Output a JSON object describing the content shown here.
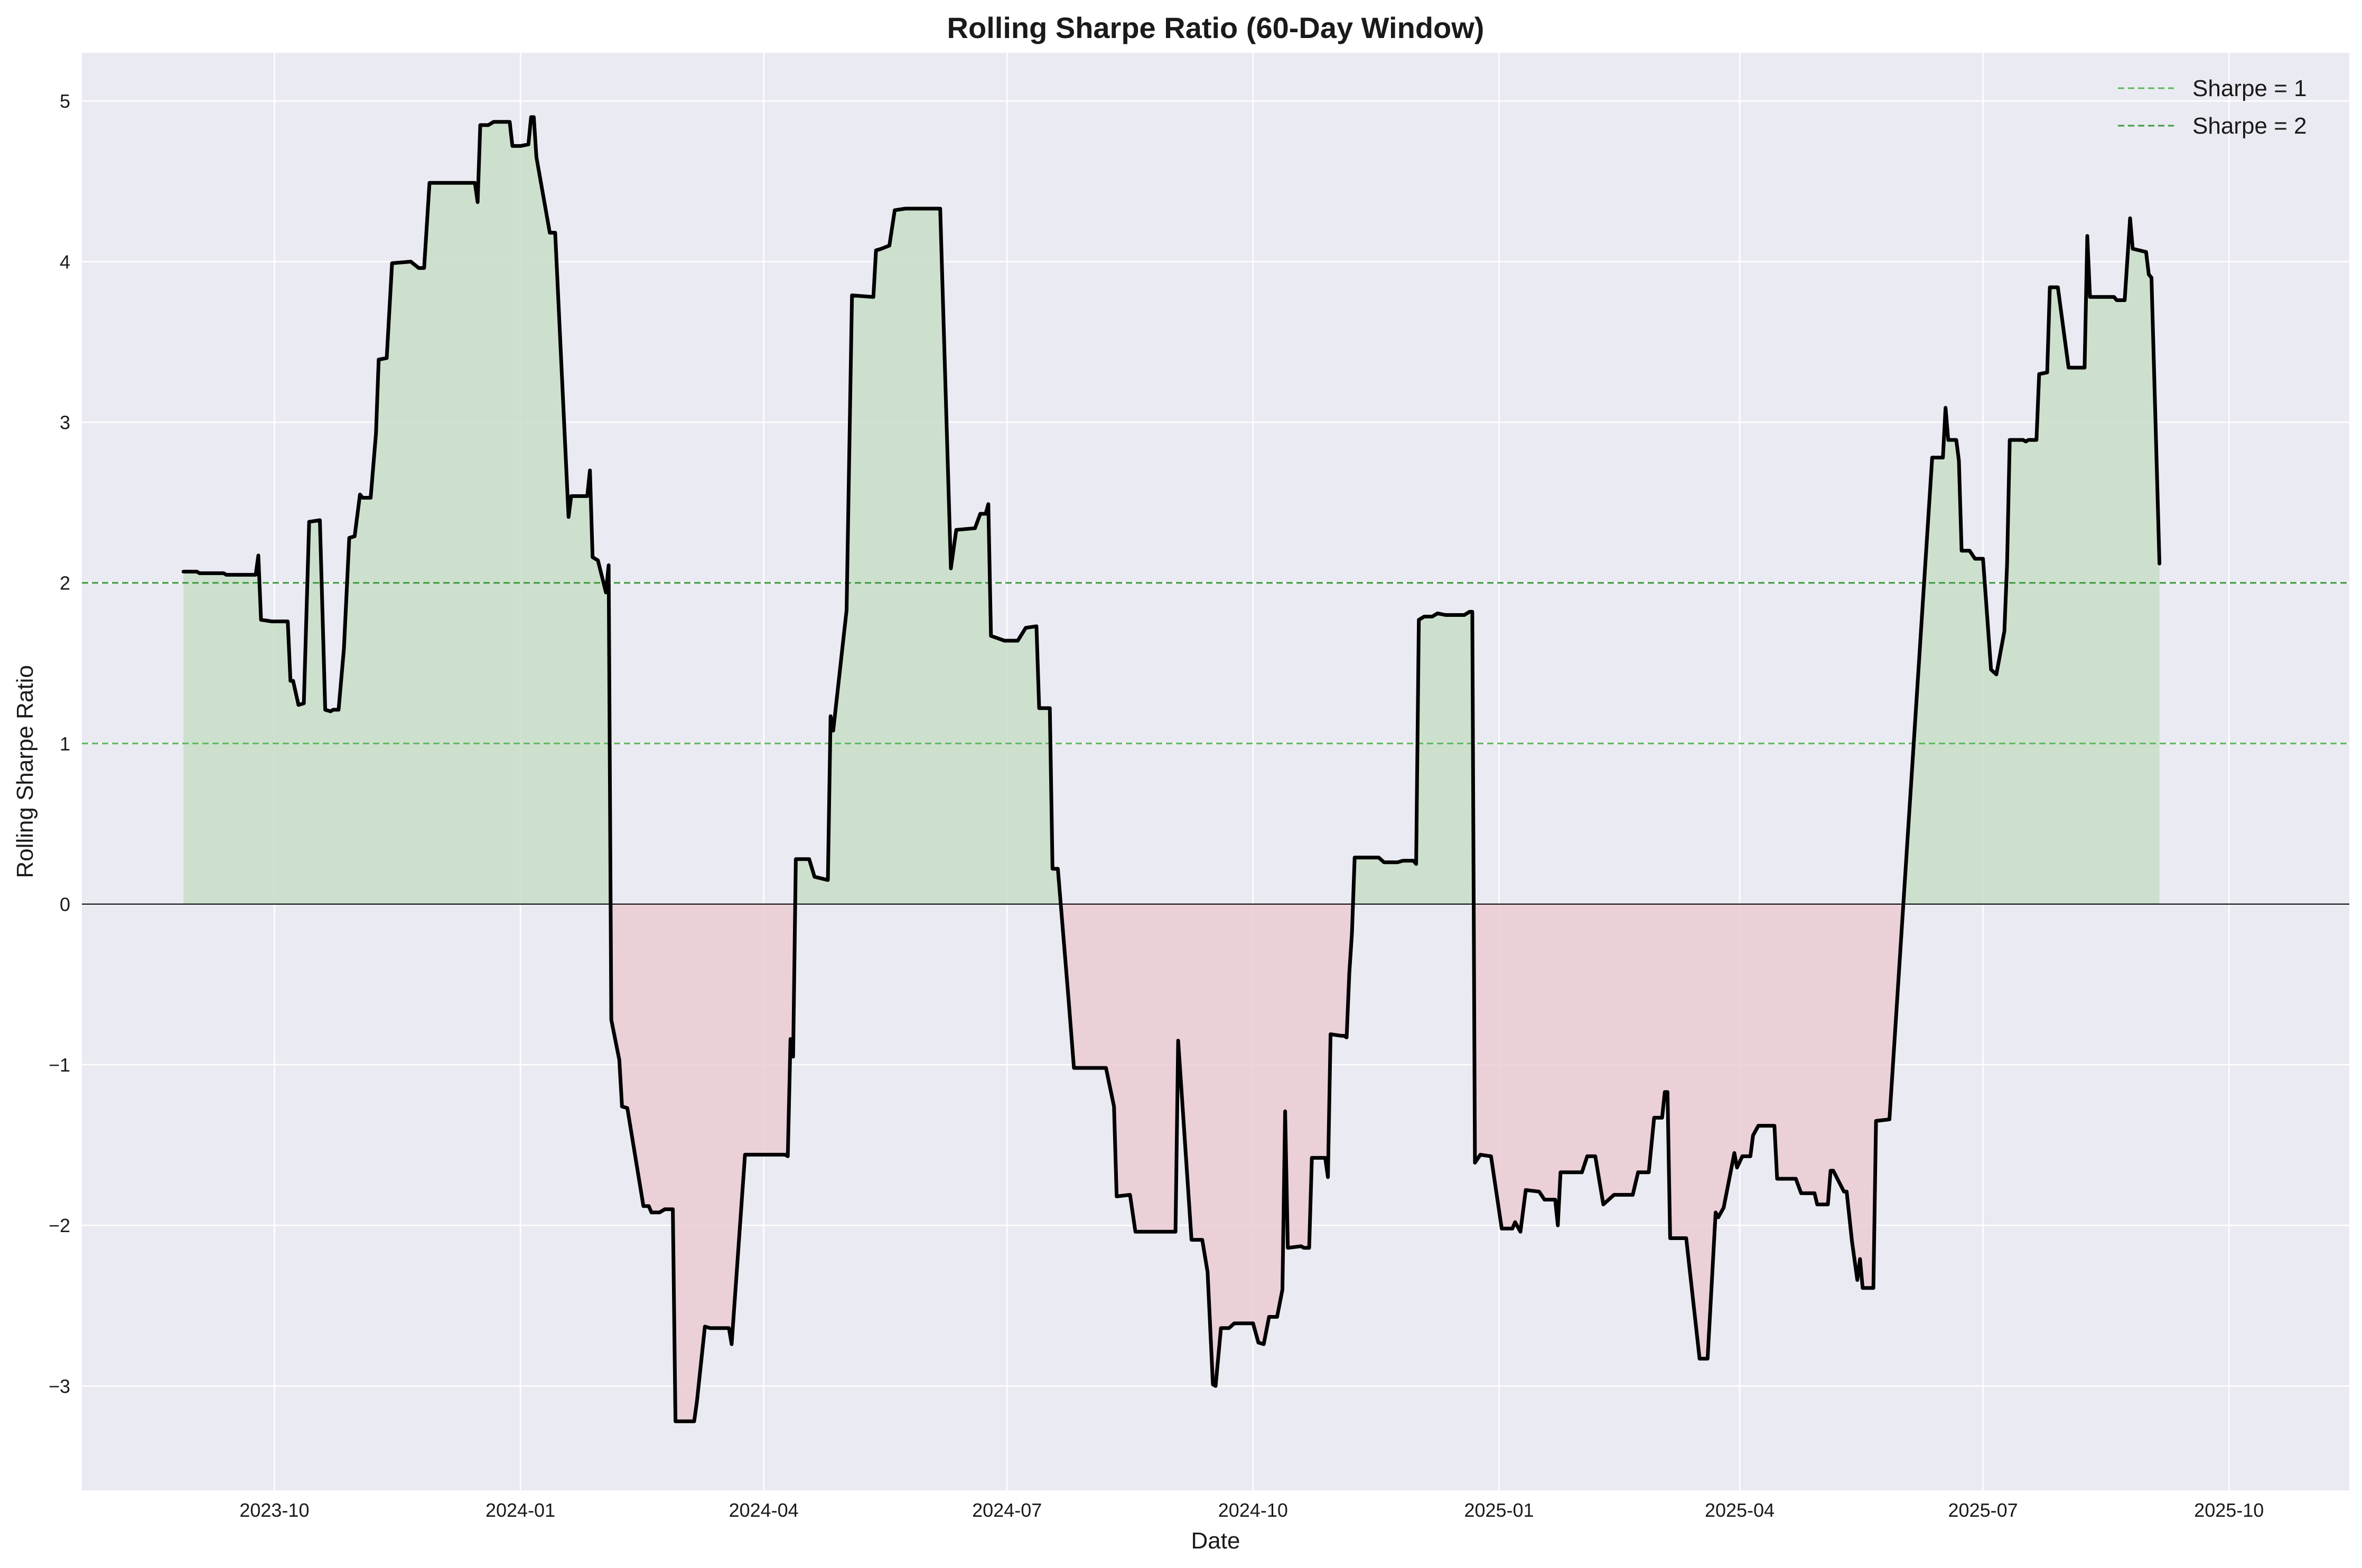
{
  "chart_data": {
    "type": "area",
    "title": "Rolling Sharpe Ratio (60-Day Window)",
    "xlabel": "Date",
    "ylabel": "Rolling Sharpe Ratio",
    "xlim": [
      "2023-07-21",
      "2025-11-15"
    ],
    "ylim": [
      -3.65,
      5.3
    ],
    "x_ticks": [
      {
        "date": "2023-10-01",
        "label": "2023-10"
      },
      {
        "date": "2024-01-01",
        "label": "2024-01"
      },
      {
        "date": "2024-04-01",
        "label": "2024-04"
      },
      {
        "date": "2024-07-01",
        "label": "2024-07"
      },
      {
        "date": "2024-10-01",
        "label": "2024-10"
      },
      {
        "date": "2025-01-01",
        "label": "2025-01"
      },
      {
        "date": "2025-04-01",
        "label": "2025-04"
      },
      {
        "date": "2025-07-01",
        "label": "2025-07"
      },
      {
        "date": "2025-10-01",
        "label": "2025-10"
      }
    ],
    "y_ticks": [
      {
        "value": 5,
        "label": "5"
      },
      {
        "value": 4,
        "label": "4"
      },
      {
        "value": 3,
        "label": "3"
      },
      {
        "value": 2,
        "label": "2"
      },
      {
        "value": 1,
        "label": "1"
      },
      {
        "value": 0,
        "label": "0"
      },
      {
        "value": -1,
        "label": "−1"
      },
      {
        "value": -2,
        "label": "−2"
      },
      {
        "value": -3,
        "label": "−3"
      }
    ],
    "grid": true,
    "legend_position": "top-right",
    "reference_lines": [
      {
        "name": "Sharpe = 1",
        "value": 1,
        "color": "#5cb85c",
        "style": "dashed"
      },
      {
        "name": "Sharpe = 2",
        "value": 2,
        "color": "#3f9a3f",
        "style": "dashed"
      }
    ],
    "zero_line": {
      "value": 0,
      "color": "#000000"
    },
    "colors": {
      "line": "#000000",
      "positive_fill": "#c8dec8",
      "negative_fill": "#ebcbd3",
      "plot_background": "#eaeaf2",
      "grid": "#ffffff"
    },
    "series": [
      {
        "values": [
          [
            "2023-08-28",
            2.07
          ],
          [
            "2023-09-02",
            2.07
          ],
          [
            "2023-09-03",
            2.06
          ],
          [
            "2023-09-12",
            2.06
          ],
          [
            "2023-09-13",
            2.05
          ],
          [
            "2023-09-24",
            2.05
          ],
          [
            "2023-09-25",
            2.17
          ],
          [
            "2023-09-26",
            1.77
          ],
          [
            "2023-09-30",
            1.76
          ],
          [
            "2023-10-06",
            1.76
          ],
          [
            "2023-10-07",
            1.39
          ],
          [
            "2023-10-08",
            1.39
          ],
          [
            "2023-10-10",
            1.24
          ],
          [
            "2023-10-12",
            1.25
          ],
          [
            "2023-10-14",
            2.38
          ],
          [
            "2023-10-18",
            2.39
          ],
          [
            "2023-10-20",
            1.21
          ],
          [
            "2023-10-22",
            1.2
          ],
          [
            "2023-10-23",
            1.21
          ],
          [
            "2023-10-25",
            1.21
          ],
          [
            "2023-10-27",
            1.59
          ],
          [
            "2023-10-29",
            2.28
          ],
          [
            "2023-10-31",
            2.29
          ],
          [
            "2023-11-02",
            2.55
          ],
          [
            "2023-11-03",
            2.53
          ],
          [
            "2023-11-06",
            2.53
          ],
          [
            "2023-11-08",
            2.93
          ],
          [
            "2023-11-09",
            3.39
          ],
          [
            "2023-11-12",
            3.4
          ],
          [
            "2023-11-14",
            3.99
          ],
          [
            "2023-11-21",
            4.0
          ],
          [
            "2023-11-24",
            3.96
          ],
          [
            "2023-11-26",
            3.96
          ],
          [
            "2023-11-28",
            4.49
          ],
          [
            "2023-12-15",
            4.49
          ],
          [
            "2023-12-16",
            4.37
          ],
          [
            "2023-12-17",
            4.85
          ],
          [
            "2023-12-20",
            4.85
          ],
          [
            "2023-12-22",
            4.87
          ],
          [
            "2023-12-28",
            4.87
          ],
          [
            "2023-12-29",
            4.72
          ],
          [
            "2024-01-01",
            4.72
          ],
          [
            "2024-01-04",
            4.73
          ],
          [
            "2024-01-05",
            4.9
          ],
          [
            "2024-01-06",
            4.9
          ],
          [
            "2024-01-07",
            4.65
          ],
          [
            "2024-01-12",
            4.18
          ],
          [
            "2024-01-14",
            4.18
          ],
          [
            "2024-01-19",
            2.41
          ],
          [
            "2024-01-20",
            2.54
          ],
          [
            "2024-01-26",
            2.54
          ],
          [
            "2024-01-27",
            2.7
          ],
          [
            "2024-01-28",
            2.16
          ],
          [
            "2024-01-30",
            2.14
          ],
          [
            "2024-02-02",
            1.94
          ],
          [
            "2024-02-03",
            2.11
          ],
          [
            "2024-02-04",
            -0.72
          ],
          [
            "2024-02-07",
            -0.97
          ],
          [
            "2024-02-08",
            -1.26
          ],
          [
            "2024-02-10",
            -1.27
          ],
          [
            "2024-02-16",
            -1.88
          ],
          [
            "2024-02-18",
            -1.88
          ],
          [
            "2024-02-19",
            -1.92
          ],
          [
            "2024-02-22",
            -1.92
          ],
          [
            "2024-02-24",
            -1.9
          ],
          [
            "2024-02-27",
            -1.9
          ],
          [
            "2024-02-28",
            -3.22
          ],
          [
            "2024-03-06",
            -3.22
          ],
          [
            "2024-03-07",
            -3.1
          ],
          [
            "2024-03-10",
            -2.63
          ],
          [
            "2024-03-12",
            -2.64
          ],
          [
            "2024-03-19",
            -2.64
          ],
          [
            "2024-03-20",
            -2.74
          ],
          [
            "2024-03-25",
            -1.56
          ],
          [
            "2024-04-09",
            -1.56
          ],
          [
            "2024-04-10",
            -1.57
          ],
          [
            "2024-04-11",
            -0.84
          ],
          [
            "2024-04-12",
            -0.95
          ],
          [
            "2024-04-13",
            0.28
          ],
          [
            "2024-04-18",
            0.28
          ],
          [
            "2024-04-20",
            0.17
          ],
          [
            "2024-04-25",
            0.15
          ],
          [
            "2024-04-26",
            1.17
          ],
          [
            "2024-04-27",
            1.08
          ],
          [
            "2024-05-02",
            1.83
          ],
          [
            "2024-05-04",
            3.79
          ],
          [
            "2024-05-12",
            3.78
          ],
          [
            "2024-05-13",
            4.07
          ],
          [
            "2024-05-15",
            4.08
          ],
          [
            "2024-05-18",
            4.1
          ],
          [
            "2024-05-20",
            4.32
          ],
          [
            "2024-05-24",
            4.33
          ],
          [
            "2024-06-06",
            4.33
          ],
          [
            "2024-06-10",
            2.09
          ],
          [
            "2024-06-12",
            2.33
          ],
          [
            "2024-06-19",
            2.34
          ],
          [
            "2024-06-21",
            2.43
          ],
          [
            "2024-06-23",
            2.43
          ],
          [
            "2024-06-24",
            2.49
          ],
          [
            "2024-06-25",
            1.67
          ],
          [
            "2024-06-30",
            1.64
          ],
          [
            "2024-07-05",
            1.64
          ],
          [
            "2024-07-08",
            1.72
          ],
          [
            "2024-07-12",
            1.73
          ],
          [
            "2024-07-13",
            1.22
          ],
          [
            "2024-07-17",
            1.22
          ],
          [
            "2024-07-18",
            0.22
          ],
          [
            "2024-07-20",
            0.22
          ],
          [
            "2024-07-24",
            -0.59
          ],
          [
            "2024-07-26",
            -1.02
          ],
          [
            "2024-08-02",
            -1.02
          ],
          [
            "2024-08-07",
            -1.02
          ],
          [
            "2024-08-10",
            -1.26
          ],
          [
            "2024-08-11",
            -1.82
          ],
          [
            "2024-08-16",
            -1.81
          ],
          [
            "2024-08-18",
            -2.04
          ],
          [
            "2024-09-02",
            -2.04
          ],
          [
            "2024-09-03",
            -0.85
          ],
          [
            "2024-09-08",
            -2.09
          ],
          [
            "2024-09-12",
            -2.09
          ],
          [
            "2024-09-14",
            -2.29
          ],
          [
            "2024-09-16",
            -2.99
          ],
          [
            "2024-09-17",
            -3.0
          ],
          [
            "2024-09-19",
            -2.64
          ],
          [
            "2024-09-22",
            -2.64
          ],
          [
            "2024-09-24",
            -2.61
          ],
          [
            "2024-10-01",
            -2.61
          ],
          [
            "2024-10-03",
            -2.73
          ],
          [
            "2024-10-05",
            -2.74
          ],
          [
            "2024-10-07",
            -2.57
          ],
          [
            "2024-10-10",
            -2.57
          ],
          [
            "2024-10-12",
            -2.4
          ],
          [
            "2024-10-13",
            -1.29
          ],
          [
            "2024-10-14",
            -2.14
          ],
          [
            "2024-10-19",
            -2.13
          ],
          [
            "2024-10-20",
            -2.14
          ],
          [
            "2024-10-22",
            -2.14
          ],
          [
            "2024-10-23",
            -1.58
          ],
          [
            "2024-10-28",
            -1.58
          ],
          [
            "2024-10-29",
            -1.7
          ],
          [
            "2024-10-30",
            -0.81
          ],
          [
            "2024-11-03",
            -0.82
          ],
          [
            "2024-11-04",
            -0.82
          ],
          [
            "2024-11-05",
            -0.83
          ],
          [
            "2024-11-06",
            -0.43
          ],
          [
            "2024-11-07",
            -0.18
          ],
          [
            "2024-11-08",
            0.29
          ],
          [
            "2024-11-17",
            0.29
          ],
          [
            "2024-11-19",
            0.26
          ],
          [
            "2024-11-24",
            0.26
          ],
          [
            "2024-11-26",
            0.27
          ],
          [
            "2024-11-30",
            0.27
          ],
          [
            "2024-12-01",
            0.25
          ],
          [
            "2024-12-02",
            1.77
          ],
          [
            "2024-12-04",
            1.79
          ],
          [
            "2024-12-07",
            1.79
          ],
          [
            "2024-12-09",
            1.81
          ],
          [
            "2024-12-12",
            1.8
          ],
          [
            "2024-12-19",
            1.8
          ],
          [
            "2024-12-21",
            1.82
          ],
          [
            "2024-12-22",
            1.82
          ],
          [
            "2024-12-23",
            -1.61
          ],
          [
            "2024-12-25",
            -1.56
          ],
          [
            "2024-12-29",
            -1.57
          ],
          [
            "2025-01-02",
            -2.02
          ],
          [
            "2025-01-06",
            -2.02
          ],
          [
            "2025-01-07",
            -1.98
          ],
          [
            "2025-01-09",
            -2.04
          ],
          [
            "2025-01-11",
            -1.78
          ],
          [
            "2025-01-16",
            -1.79
          ],
          [
            "2025-01-18",
            -1.84
          ],
          [
            "2025-01-22",
            -1.84
          ],
          [
            "2025-01-23",
            -2.0
          ],
          [
            "2025-01-24",
            -1.67
          ],
          [
            "2025-02-01",
            -1.67
          ],
          [
            "2025-02-03",
            -1.57
          ],
          [
            "2025-02-06",
            -1.57
          ],
          [
            "2025-02-09",
            -1.87
          ],
          [
            "2025-02-13",
            -1.81
          ],
          [
            "2025-02-20",
            -1.81
          ],
          [
            "2025-02-22",
            -1.67
          ],
          [
            "2025-02-26",
            -1.67
          ],
          [
            "2025-02-28",
            -1.33
          ],
          [
            "2025-03-03",
            -1.33
          ],
          [
            "2025-03-04",
            -1.17
          ],
          [
            "2025-03-05",
            -1.17
          ],
          [
            "2025-03-06",
            -2.08
          ],
          [
            "2025-03-12",
            -2.08
          ],
          [
            "2025-03-17",
            -2.83
          ],
          [
            "2025-03-20",
            -2.83
          ],
          [
            "2025-03-23",
            -1.92
          ],
          [
            "2025-03-24",
            -1.95
          ],
          [
            "2025-03-26",
            -1.89
          ],
          [
            "2025-03-30",
            -1.55
          ],
          [
            "2025-03-31",
            -1.64
          ],
          [
            "2025-04-02",
            -1.57
          ],
          [
            "2025-04-05",
            -1.57
          ],
          [
            "2025-04-06",
            -1.44
          ],
          [
            "2025-04-08",
            -1.38
          ],
          [
            "2025-04-14",
            -1.38
          ],
          [
            "2025-04-15",
            -1.71
          ],
          [
            "2025-04-22",
            -1.71
          ],
          [
            "2025-04-24",
            -1.8
          ],
          [
            "2025-04-29",
            -1.8
          ],
          [
            "2025-04-30",
            -1.87
          ],
          [
            "2025-05-04",
            -1.87
          ],
          [
            "2025-05-05",
            -1.66
          ],
          [
            "2025-05-06",
            -1.66
          ],
          [
            "2025-05-10",
            -1.79
          ],
          [
            "2025-05-11",
            -1.79
          ],
          [
            "2025-05-13",
            -2.1
          ],
          [
            "2025-05-15",
            -2.34
          ],
          [
            "2025-05-16",
            -2.21
          ],
          [
            "2025-05-17",
            -2.39
          ],
          [
            "2025-05-21",
            -2.39
          ],
          [
            "2025-05-22",
            -1.35
          ],
          [
            "2025-05-27",
            -1.34
          ],
          [
            "2025-06-12",
            2.78
          ],
          [
            "2025-06-16",
            2.78
          ],
          [
            "2025-06-17",
            3.09
          ],
          [
            "2025-06-18",
            2.89
          ],
          [
            "2025-06-21",
            2.89
          ],
          [
            "2025-06-22",
            2.76
          ],
          [
            "2025-06-23",
            2.2
          ],
          [
            "2025-06-26",
            2.2
          ],
          [
            "2025-06-28",
            2.15
          ],
          [
            "2025-07-01",
            2.15
          ],
          [
            "2025-07-04",
            1.46
          ],
          [
            "2025-07-06",
            1.43
          ],
          [
            "2025-07-09",
            1.7
          ],
          [
            "2025-07-10",
            2.12
          ],
          [
            "2025-07-11",
            2.89
          ],
          [
            "2025-07-16",
            2.89
          ],
          [
            "2025-07-17",
            2.88
          ],
          [
            "2025-07-18",
            2.89
          ],
          [
            "2025-07-21",
            2.89
          ],
          [
            "2025-07-22",
            3.3
          ],
          [
            "2025-07-25",
            3.31
          ],
          [
            "2025-07-26",
            3.84
          ],
          [
            "2025-07-29",
            3.84
          ],
          [
            "2025-08-02",
            3.34
          ],
          [
            "2025-08-08",
            3.34
          ],
          [
            "2025-08-09",
            4.16
          ],
          [
            "2025-08-10",
            3.78
          ],
          [
            "2025-08-14",
            3.78
          ],
          [
            "2025-08-19",
            3.78
          ],
          [
            "2025-08-20",
            3.76
          ],
          [
            "2025-08-23",
            3.76
          ],
          [
            "2025-08-25",
            4.27
          ],
          [
            "2025-08-26",
            4.08
          ],
          [
            "2025-08-31",
            4.06
          ],
          [
            "2025-09-01",
            3.92
          ],
          [
            "2025-09-02",
            3.9
          ],
          [
            "2025-09-05",
            2.12
          ]
        ]
      }
    ]
  }
}
